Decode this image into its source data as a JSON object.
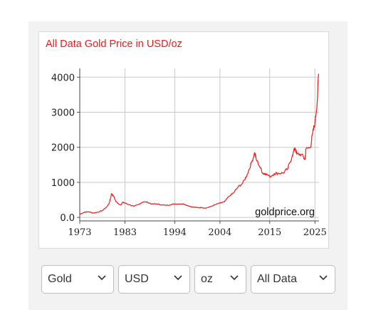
{
  "chart_data": {
    "type": "line",
    "title": "All Data Gold Price in USD/oz",
    "watermark": "goldprice.org",
    "line_color": "#e81b1b",
    "grid": true,
    "xlim": [
      1973,
      2025.9
    ],
    "ylim": [
      -100,
      4250
    ],
    "x_ticks": [
      1973,
      1983,
      1994,
      2004,
      2015,
      2025
    ],
    "x_tick_labels": [
      "1973",
      "1983",
      "1994",
      "2004",
      "2015",
      "2025"
    ],
    "y_ticks": [
      0,
      1000,
      2000,
      3000,
      4000
    ],
    "y_tick_labels": [
      "0.0",
      "1000",
      "2000",
      "3000",
      "4000"
    ],
    "series": [
      {
        "x": [
          1973,
          1974,
          1975,
          1976,
          1977,
          1978,
          1979,
          1979.5,
          1980.05,
          1980.5,
          1981,
          1982,
          1982.5,
          1983,
          1984,
          1985,
          1986,
          1987,
          1988,
          1989,
          1990,
          1991,
          1992,
          1993,
          1994,
          1995,
          1996,
          1997,
          1998,
          1999,
          2000,
          2001,
          2002,
          2003,
          2004,
          2005,
          2006,
          2007,
          2008,
          2009,
          2010,
          2011,
          2011.7,
          2012,
          2013,
          2013.5,
          2014,
          2015,
          2016,
          2017,
          2018,
          2019,
          2020,
          2020.6,
          2021,
          2022,
          2022.8,
          2023,
          2024,
          2024.5,
          2025,
          2025.5,
          2025.8
        ],
        "y": [
          90,
          150,
          160,
          125,
          150,
          195,
          305,
          400,
          680,
          600,
          450,
          350,
          430,
          410,
          360,
          315,
          370,
          445,
          430,
          380,
          385,
          360,
          345,
          360,
          385,
          385,
          385,
          330,
          295,
          280,
          280,
          270,
          310,
          365,
          410,
          445,
          600,
          700,
          870,
          970,
          1220,
          1570,
          1850,
          1660,
          1400,
          1250,
          1260,
          1160,
          1250,
          1260,
          1270,
          1390,
          1770,
          1980,
          1800,
          1800,
          1650,
          1950,
          2000,
          2400,
          2700,
          3300,
          4100
        ]
      }
    ]
  },
  "controls": {
    "metal": "Gold",
    "currency": "USD",
    "unit": "oz",
    "range": "All Data"
  }
}
